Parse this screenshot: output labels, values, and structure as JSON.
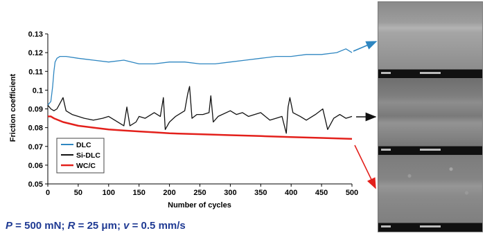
{
  "chart_data": {
    "type": "line",
    "xlabel": "Number of cycles",
    "ylabel": "Friction coefficient",
    "xlim": [
      0,
      500
    ],
    "ylim": [
      0.05,
      0.13
    ],
    "x_ticks": [
      0,
      50,
      100,
      150,
      200,
      250,
      300,
      350,
      400,
      450,
      500
    ],
    "y_ticks": [
      "0.05",
      "0.06",
      "0.07",
      "0.08",
      "0.09",
      "0.1",
      "0.11",
      "0.12",
      "0.13"
    ],
    "grid": false,
    "legend_position": "bottom-left",
    "series": [
      {
        "name": "DLC",
        "color": "#2e86c1",
        "x": [
          0,
          5,
          8,
          10,
          12,
          15,
          20,
          30,
          50,
          75,
          100,
          125,
          150,
          175,
          200,
          225,
          250,
          275,
          300,
          325,
          350,
          375,
          400,
          425,
          450,
          475,
          490,
          500
        ],
        "y": [
          0.092,
          0.094,
          0.102,
          0.11,
          0.115,
          0.117,
          0.118,
          0.118,
          0.117,
          0.116,
          0.115,
          0.116,
          0.114,
          0.114,
          0.115,
          0.115,
          0.114,
          0.114,
          0.115,
          0.116,
          0.117,
          0.118,
          0.118,
          0.119,
          0.119,
          0.12,
          0.122,
          0.12
        ]
      },
      {
        "name": "Si-DLC",
        "color": "#111111",
        "x": [
          0,
          5,
          10,
          15,
          20,
          25,
          30,
          35,
          40,
          50,
          60,
          75,
          90,
          100,
          110,
          125,
          130,
          135,
          145,
          150,
          160,
          175,
          185,
          190,
          193,
          200,
          210,
          225,
          230,
          233,
          237,
          245,
          255,
          265,
          268,
          272,
          280,
          300,
          310,
          320,
          330,
          340,
          350,
          365,
          375,
          385,
          392,
          395,
          398,
          403,
          415,
          425,
          440,
          452,
          460,
          470,
          480,
          490,
          500
        ],
        "y": [
          0.092,
          0.09,
          0.089,
          0.09,
          0.093,
          0.096,
          0.089,
          0.088,
          0.087,
          0.086,
          0.085,
          0.084,
          0.085,
          0.086,
          0.084,
          0.081,
          0.091,
          0.081,
          0.083,
          0.086,
          0.085,
          0.088,
          0.086,
          0.096,
          0.079,
          0.083,
          0.086,
          0.089,
          0.098,
          0.102,
          0.085,
          0.087,
          0.087,
          0.088,
          0.097,
          0.083,
          0.086,
          0.089,
          0.087,
          0.088,
          0.086,
          0.087,
          0.088,
          0.084,
          0.085,
          0.086,
          0.077,
          0.091,
          0.096,
          0.088,
          0.086,
          0.084,
          0.087,
          0.09,
          0.079,
          0.085,
          0.087,
          0.085,
          0.086
        ]
      },
      {
        "name": "WC/C",
        "color": "#e3201b",
        "x": [
          0,
          5,
          10,
          25,
          50,
          75,
          100,
          125,
          150,
          175,
          200,
          250,
          300,
          350,
          400,
          450,
          500
        ],
        "y": [
          0.086,
          0.086,
          0.085,
          0.083,
          0.081,
          0.08,
          0.079,
          0.0785,
          0.078,
          0.0775,
          0.077,
          0.0765,
          0.076,
          0.0755,
          0.075,
          0.0745,
          0.074
        ]
      }
    ]
  },
  "params_text": {
    "p_sym": "P",
    "p_val": " = 500 mN; ",
    "r_sym": "R",
    "r_val": " = 25 μm; ",
    "v_sym": "v",
    "v_val": " = 0.5 mm/s"
  },
  "arrow_colors": [
    "#2e86c1",
    "#111111",
    "#e3201b"
  ]
}
